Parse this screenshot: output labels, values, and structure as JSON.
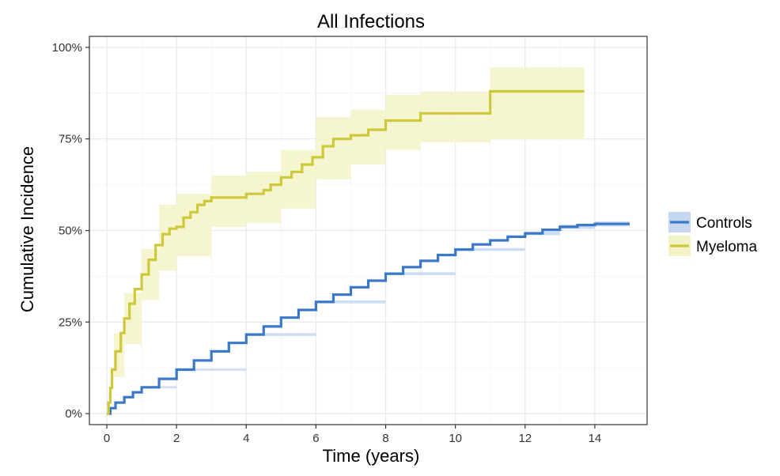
{
  "chart_data": {
    "type": "line",
    "title": "All Infections",
    "xlabel": "Time (years)",
    "ylabel": "Cumulative Incidence",
    "xlim": [
      -0.5,
      15.5
    ],
    "ylim": [
      -0.03,
      1.03
    ],
    "x_ticks": [
      0,
      2,
      4,
      6,
      8,
      10,
      12,
      14
    ],
    "x_tick_labels": [
      "0",
      "2",
      "4",
      "6",
      "8",
      "10",
      "12",
      "14"
    ],
    "y_ticks": [
      0,
      0.25,
      0.5,
      0.75,
      1.0
    ],
    "y_tick_labels": [
      "0%",
      "25%",
      "50%",
      "75%",
      "100%"
    ],
    "grid": true,
    "legend_position": "right",
    "step": true,
    "series": [
      {
        "name": "Controls",
        "color": "#3a78c9",
        "band_color": "#c5d8f0",
        "points": [
          [
            0,
            0
          ],
          [
            0.1,
            0.015
          ],
          [
            0.25,
            0.03
          ],
          [
            0.5,
            0.045
          ],
          [
            0.75,
            0.058
          ],
          [
            1.0,
            0.072
          ],
          [
            1.5,
            0.095
          ],
          [
            2.0,
            0.12
          ],
          [
            2.5,
            0.145
          ],
          [
            3.0,
            0.17
          ],
          [
            3.5,
            0.193
          ],
          [
            4.0,
            0.216
          ],
          [
            4.5,
            0.238
          ],
          [
            5.0,
            0.262
          ],
          [
            5.5,
            0.283
          ],
          [
            6.0,
            0.305
          ],
          [
            6.5,
            0.325
          ],
          [
            7.0,
            0.345
          ],
          [
            7.5,
            0.363
          ],
          [
            8.0,
            0.382
          ],
          [
            8.5,
            0.4
          ],
          [
            9.0,
            0.417
          ],
          [
            9.5,
            0.433
          ],
          [
            10.0,
            0.448
          ],
          [
            10.5,
            0.462
          ],
          [
            11.0,
            0.473
          ],
          [
            11.5,
            0.483
          ],
          [
            12.0,
            0.492
          ],
          [
            12.5,
            0.502
          ],
          [
            13.0,
            0.51
          ],
          [
            13.5,
            0.515
          ],
          [
            14.0,
            0.518
          ],
          [
            15.0,
            0.518
          ]
        ],
        "lower": [
          [
            0,
            0
          ],
          [
            1.0,
            0.069
          ],
          [
            2.0,
            0.117
          ],
          [
            4.0,
            0.212
          ],
          [
            6.0,
            0.301
          ],
          [
            8.0,
            0.378
          ],
          [
            10.0,
            0.444
          ],
          [
            12.0,
            0.487
          ],
          [
            13.0,
            0.504
          ],
          [
            14.0,
            0.511
          ],
          [
            15.0,
            0.511
          ]
        ],
        "upper": [
          [
            0,
            0
          ],
          [
            1.0,
            0.075
          ],
          [
            2.0,
            0.123
          ],
          [
            4.0,
            0.22
          ],
          [
            6.0,
            0.309
          ],
          [
            8.0,
            0.386
          ],
          [
            10.0,
            0.452
          ],
          [
            12.0,
            0.497
          ],
          [
            13.0,
            0.516
          ],
          [
            14.0,
            0.525
          ],
          [
            15.0,
            0.525
          ]
        ]
      },
      {
        "name": "Myeloma",
        "color": "#cdc93a",
        "band_color": "#f3f3c8",
        "points": [
          [
            0,
            0
          ],
          [
            0.05,
            0.03
          ],
          [
            0.1,
            0.07
          ],
          [
            0.15,
            0.12
          ],
          [
            0.25,
            0.17
          ],
          [
            0.4,
            0.22
          ],
          [
            0.5,
            0.26
          ],
          [
            0.65,
            0.3
          ],
          [
            0.8,
            0.34
          ],
          [
            1.0,
            0.38
          ],
          [
            1.2,
            0.42
          ],
          [
            1.4,
            0.46
          ],
          [
            1.6,
            0.49
          ],
          [
            1.8,
            0.505
          ],
          [
            2.0,
            0.51
          ],
          [
            2.2,
            0.535
          ],
          [
            2.4,
            0.55
          ],
          [
            2.6,
            0.57
          ],
          [
            2.8,
            0.58
          ],
          [
            3.0,
            0.59
          ],
          [
            3.5,
            0.59
          ],
          [
            4.0,
            0.6
          ],
          [
            4.5,
            0.61
          ],
          [
            4.7,
            0.625
          ],
          [
            5.0,
            0.645
          ],
          [
            5.3,
            0.66
          ],
          [
            5.6,
            0.68
          ],
          [
            5.9,
            0.7
          ],
          [
            6.2,
            0.73
          ],
          [
            6.5,
            0.75
          ],
          [
            7.0,
            0.76
          ],
          [
            7.5,
            0.775
          ],
          [
            8.0,
            0.8
          ],
          [
            9.0,
            0.82
          ],
          [
            10.0,
            0.82
          ],
          [
            11.0,
            0.88
          ],
          [
            13.7,
            0.88
          ]
        ],
        "lower": [
          [
            0,
            0
          ],
          [
            0.2,
            0.1
          ],
          [
            0.5,
            0.19
          ],
          [
            1.0,
            0.31
          ],
          [
            1.5,
            0.39
          ],
          [
            2.0,
            0.43
          ],
          [
            3.0,
            0.51
          ],
          [
            4.0,
            0.52
          ],
          [
            5.0,
            0.56
          ],
          [
            6.0,
            0.64
          ],
          [
            7.0,
            0.68
          ],
          [
            8.0,
            0.72
          ],
          [
            9.0,
            0.74
          ],
          [
            11.0,
            0.74
          ],
          [
            11.0,
            0.75
          ],
          [
            13.7,
            0.75
          ]
        ],
        "upper": [
          [
            0,
            0
          ],
          [
            0.2,
            0.22
          ],
          [
            0.5,
            0.33
          ],
          [
            1.0,
            0.45
          ],
          [
            1.5,
            0.57
          ],
          [
            2.0,
            0.6
          ],
          [
            3.0,
            0.65
          ],
          [
            4.0,
            0.66
          ],
          [
            5.0,
            0.72
          ],
          [
            6.0,
            0.81
          ],
          [
            7.0,
            0.83
          ],
          [
            8.0,
            0.87
          ],
          [
            9.0,
            0.88
          ],
          [
            11.0,
            0.88
          ],
          [
            11.0,
            0.945
          ],
          [
            13.7,
            0.945
          ]
        ]
      }
    ]
  }
}
